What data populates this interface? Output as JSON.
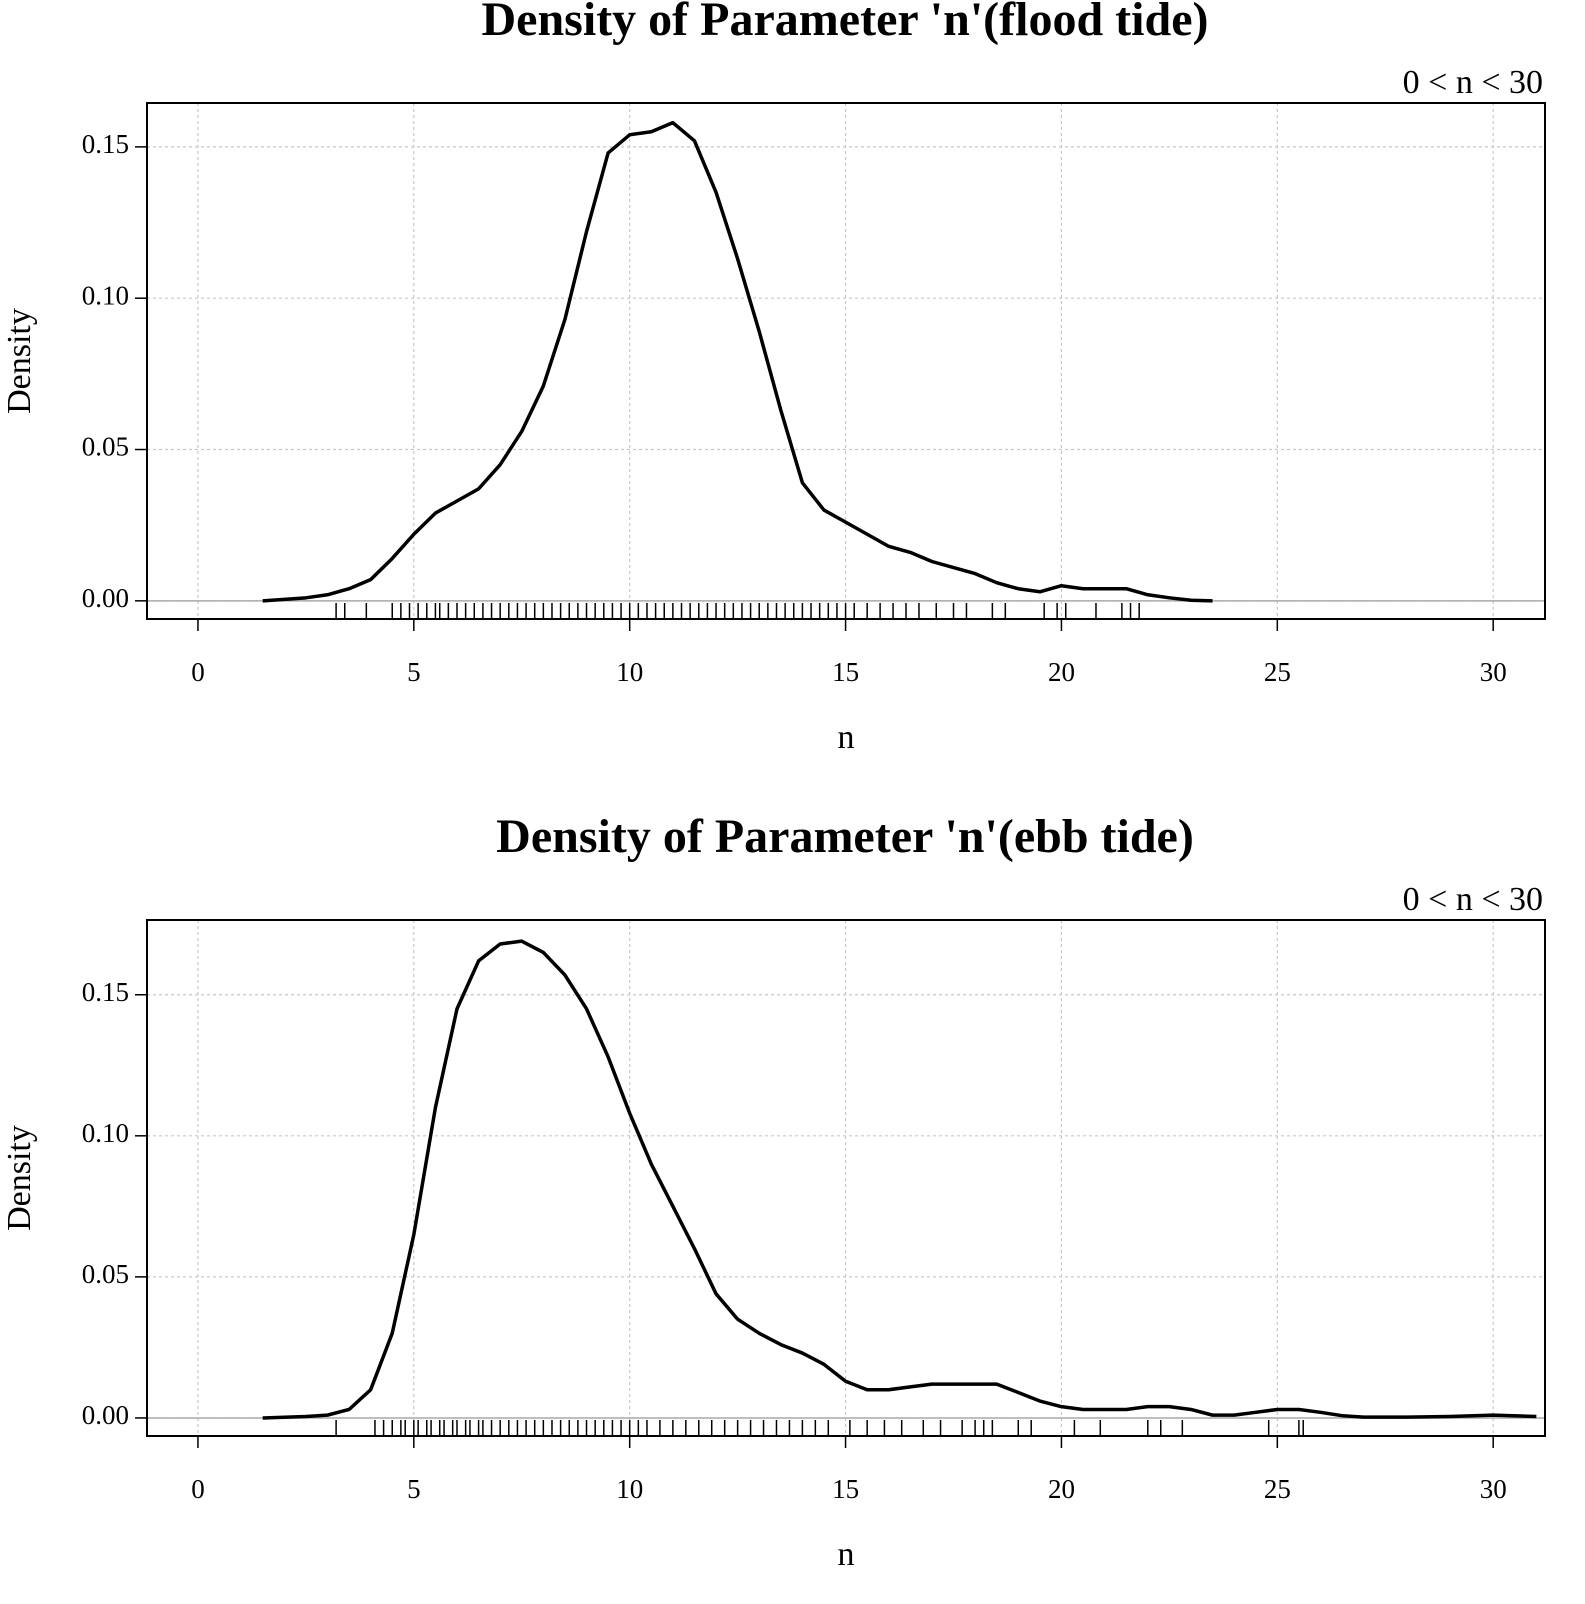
{
  "chart_data": [
    {
      "type": "line",
      "title": "Density of Parameter 'n'(flood tide)",
      "subtitle": "0 < n < 30",
      "x_label": "n",
      "y_label": "Density",
      "color": "#000000",
      "grid": true,
      "xlim": [
        -1.18,
        31.2
      ],
      "ylim": [
        -0.006,
        0.1645
      ],
      "xticks": [
        0,
        5,
        10,
        15,
        20,
        25,
        30
      ],
      "yticks": [
        {
          "value": 0,
          "label": "0.00"
        },
        0.05,
        {
          "value": 0.1,
          "label": "0.10"
        },
        0.15
      ],
      "x": [
        1.5,
        2.5,
        3,
        3.5,
        4,
        4.5,
        5,
        5.5,
        6,
        6.5,
        7,
        7.5,
        8,
        8.5,
        9,
        9.5,
        10,
        10.5,
        11,
        11.5,
        12,
        12.5,
        13,
        13.5,
        14,
        14.5,
        15,
        15.5,
        16,
        16.5,
        17,
        17.5,
        18,
        18.5,
        19,
        19.5,
        20,
        20.5,
        21,
        21.5,
        22,
        22.5,
        23,
        23.5
      ],
      "values": [
        0,
        0.001,
        0.002,
        0.004,
        0.007,
        0.014,
        0.022,
        0.029,
        0.033,
        0.037,
        0.045,
        0.056,
        0.071,
        0.093,
        0.122,
        0.148,
        0.154,
        0.155,
        0.158,
        0.152,
        0.135,
        0.113,
        0.089,
        0.063,
        0.039,
        0.03,
        0.026,
        0.022,
        0.018,
        0.016,
        0.013,
        0.011,
        0.009,
        0.006,
        0.004,
        0.003,
        0.005,
        0.004,
        0.004,
        0.004,
        0.002,
        0.001,
        0.0002,
        0
      ],
      "rug": [
        3.2,
        3.4,
        3.9,
        4.5,
        4.7,
        4.9,
        5.1,
        5.3,
        5.5,
        5.6,
        5.8,
        6.0,
        6.2,
        6.4,
        6.6,
        6.8,
        7.0,
        7.2,
        7.4,
        7.6,
        7.8,
        8.0,
        8.2,
        8.4,
        8.6,
        8.8,
        9.0,
        9.2,
        9.4,
        9.6,
        9.8,
        10.0,
        10.2,
        10.4,
        10.6,
        10.8,
        11.0,
        11.2,
        11.4,
        11.6,
        11.8,
        12.0,
        12.2,
        12.4,
        12.6,
        12.8,
        13.0,
        13.2,
        13.4,
        13.6,
        13.8,
        14.0,
        14.2,
        14.4,
        14.6,
        14.8,
        15.0,
        15.2,
        15.5,
        15.8,
        16.1,
        16.4,
        16.7,
        17.1,
        17.5,
        17.8,
        18.4,
        18.7,
        19.6,
        19.9,
        20.1,
        20.8,
        21.4,
        21.6,
        21.8
      ]
    },
    {
      "type": "line",
      "title": "Density of Parameter 'n'(ebb tide)",
      "subtitle": "0 < n < 30",
      "x_label": "n",
      "y_label": "Density",
      "color": "#000000",
      "grid": true,
      "xlim": [
        -1.18,
        31.2
      ],
      "ylim": [
        -0.0064,
        0.1765
      ],
      "xticks": [
        0,
        5,
        10,
        15,
        20,
        25,
        30
      ],
      "yticks": [
        {
          "value": 0,
          "label": "0.00"
        },
        0.05,
        {
          "value": 0.1,
          "label": "0.10"
        },
        0.15
      ],
      "x": [
        1.5,
        2.5,
        3,
        3.5,
        4,
        4.5,
        5,
        5.5,
        6,
        6.5,
        7,
        7.5,
        8,
        8.5,
        9,
        9.5,
        10,
        10.5,
        11,
        11.5,
        12,
        12.5,
        13,
        13.5,
        14,
        14.5,
        15,
        15.5,
        16,
        16.5,
        17,
        17.5,
        18,
        18.5,
        19,
        19.5,
        20,
        20.5,
        21,
        21.5,
        22,
        22.5,
        23,
        23.5,
        24,
        24.5,
        25,
        25.5,
        26,
        26.5,
        27,
        28,
        29,
        30,
        31
      ],
      "values": [
        0,
        0.0005,
        0.001,
        0.003,
        0.01,
        0.03,
        0.065,
        0.11,
        0.145,
        0.162,
        0.168,
        0.169,
        0.165,
        0.157,
        0.145,
        0.128,
        0.108,
        0.09,
        0.075,
        0.06,
        0.044,
        0.035,
        0.03,
        0.026,
        0.023,
        0.019,
        0.013,
        0.01,
        0.01,
        0.011,
        0.012,
        0.012,
        0.012,
        0.012,
        0.009,
        0.006,
        0.004,
        0.003,
        0.003,
        0.003,
        0.004,
        0.004,
        0.003,
        0.001,
        0.001,
        0.002,
        0.003,
        0.003,
        0.002,
        0.0008,
        0.0003,
        0.0003,
        0.0005,
        0.001,
        0.0005
      ],
      "rug": [
        3.2,
        4.1,
        4.3,
        4.5,
        4.7,
        4.8,
        5.0,
        5.1,
        5.3,
        5.4,
        5.6,
        5.7,
        5.9,
        6.0,
        6.2,
        6.3,
        6.5,
        6.6,
        6.8,
        7.0,
        7.2,
        7.4,
        7.6,
        7.8,
        8.0,
        8.2,
        8.4,
        8.6,
        8.8,
        9.0,
        9.2,
        9.4,
        9.6,
        9.8,
        10.0,
        10.2,
        10.4,
        10.7,
        11.0,
        11.3,
        11.6,
        11.9,
        12.2,
        12.5,
        12.8,
        13.1,
        13.4,
        13.7,
        14.0,
        14.3,
        14.6,
        15.1,
        15.5,
        15.9,
        16.3,
        16.8,
        17.2,
        17.7,
        18.0,
        18.2,
        18.4,
        19.0,
        19.3,
        20.3,
        20.9,
        22.0,
        22.3,
        22.8,
        24.8,
        25.5,
        25.6
      ]
    }
  ]
}
